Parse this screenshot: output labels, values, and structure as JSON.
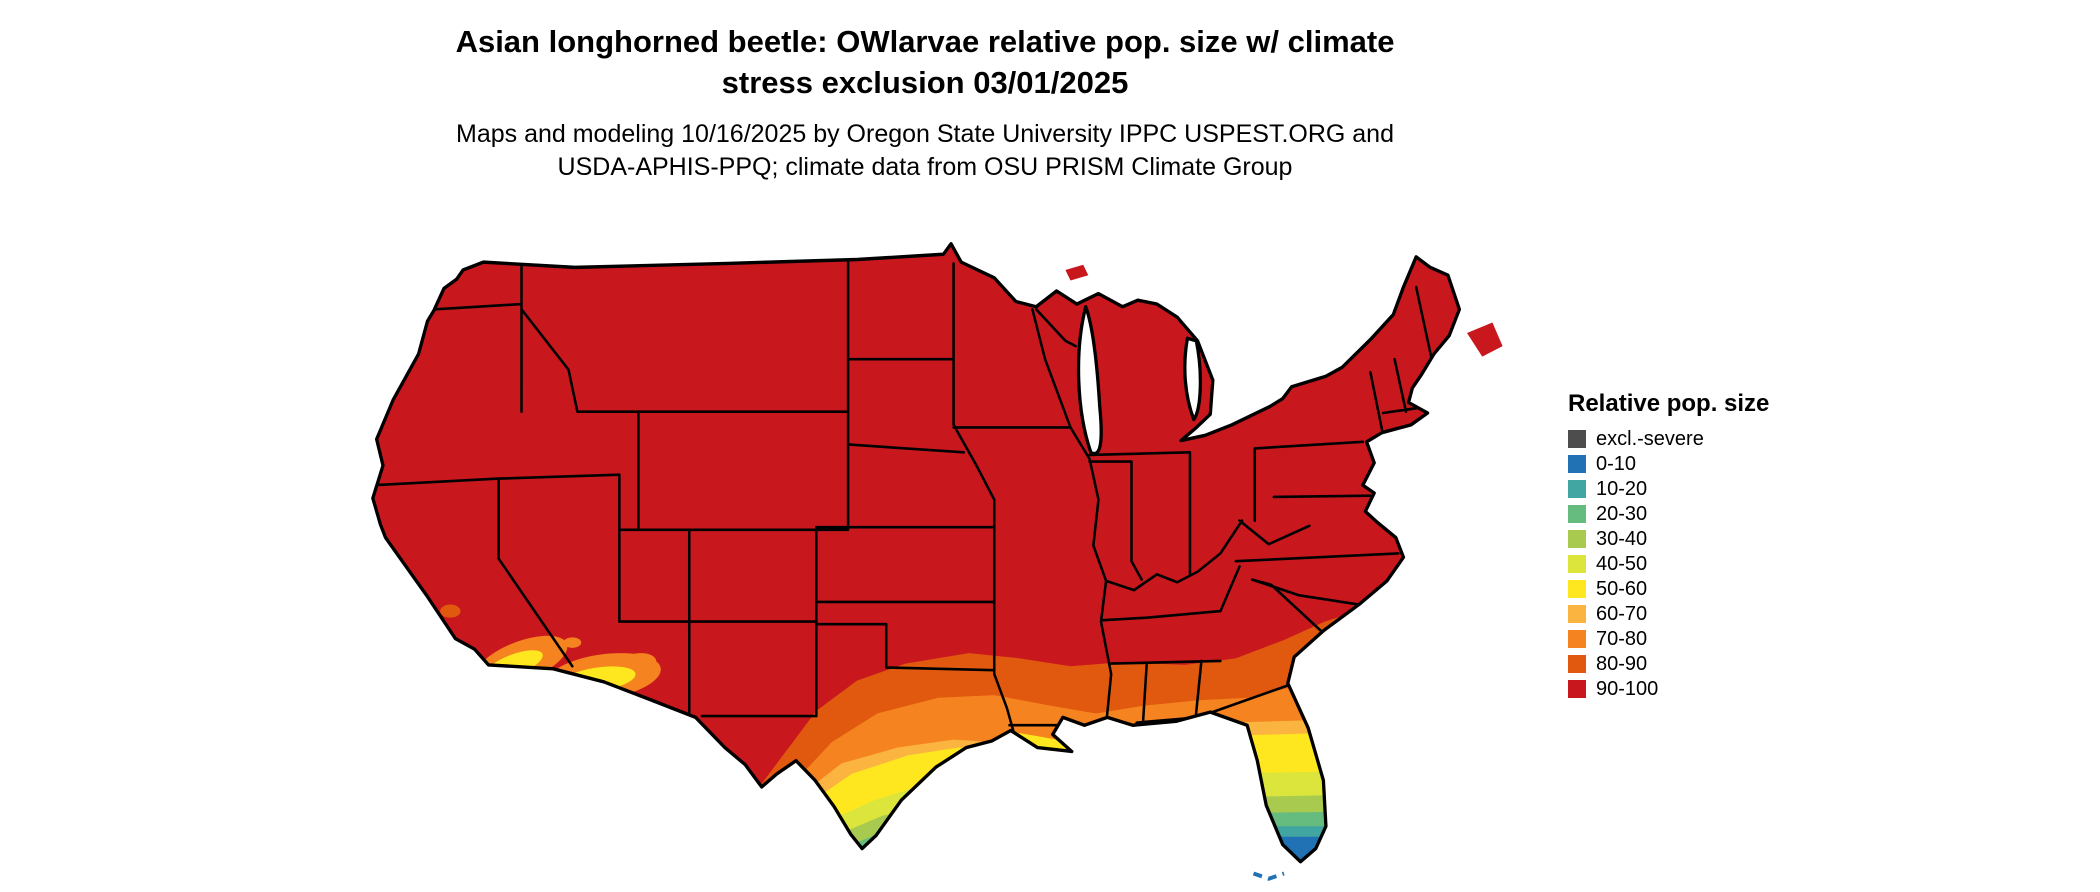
{
  "header": {
    "title_line1": "Asian longhorned beetle: OWlarvae relative pop. size w/ climate",
    "title_line2": "stress exclusion 03/01/2025",
    "subtitle_line1": "Maps and modeling 10/16/2025 by Oregon State University IPPC USPEST.ORG and",
    "subtitle_line2": "USDA-APHIS-PPQ; climate data from OSU PRISM Climate Group"
  },
  "map": {
    "description": "Continental United States choropleth of relative population size; mostly 90-100 (red) with lower values along the southern margins (south Texas, Gulf Coast, Florida peninsula, southern Arizona and California)",
    "dominant_level": "90-100"
  },
  "legend": {
    "title": "Relative pop. size",
    "items": [
      {
        "label": "excl.-severe",
        "color": "#4D4D4D"
      },
      {
        "label": "0-10",
        "color": "#2171B5"
      },
      {
        "label": "10-20",
        "color": "#41A6A1"
      },
      {
        "label": "20-30",
        "color": "#66BB7F"
      },
      {
        "label": "30-40",
        "color": "#A8CB4F"
      },
      {
        "label": "40-50",
        "color": "#DCE53C"
      },
      {
        "label": "50-60",
        "color": "#FFE720"
      },
      {
        "label": "60-70",
        "color": "#FCB441"
      },
      {
        "label": "70-80",
        "color": "#F5831F"
      },
      {
        "label": "80-90",
        "color": "#E1590E"
      },
      {
        "label": "90-100",
        "color": "#C9181D"
      }
    ]
  }
}
